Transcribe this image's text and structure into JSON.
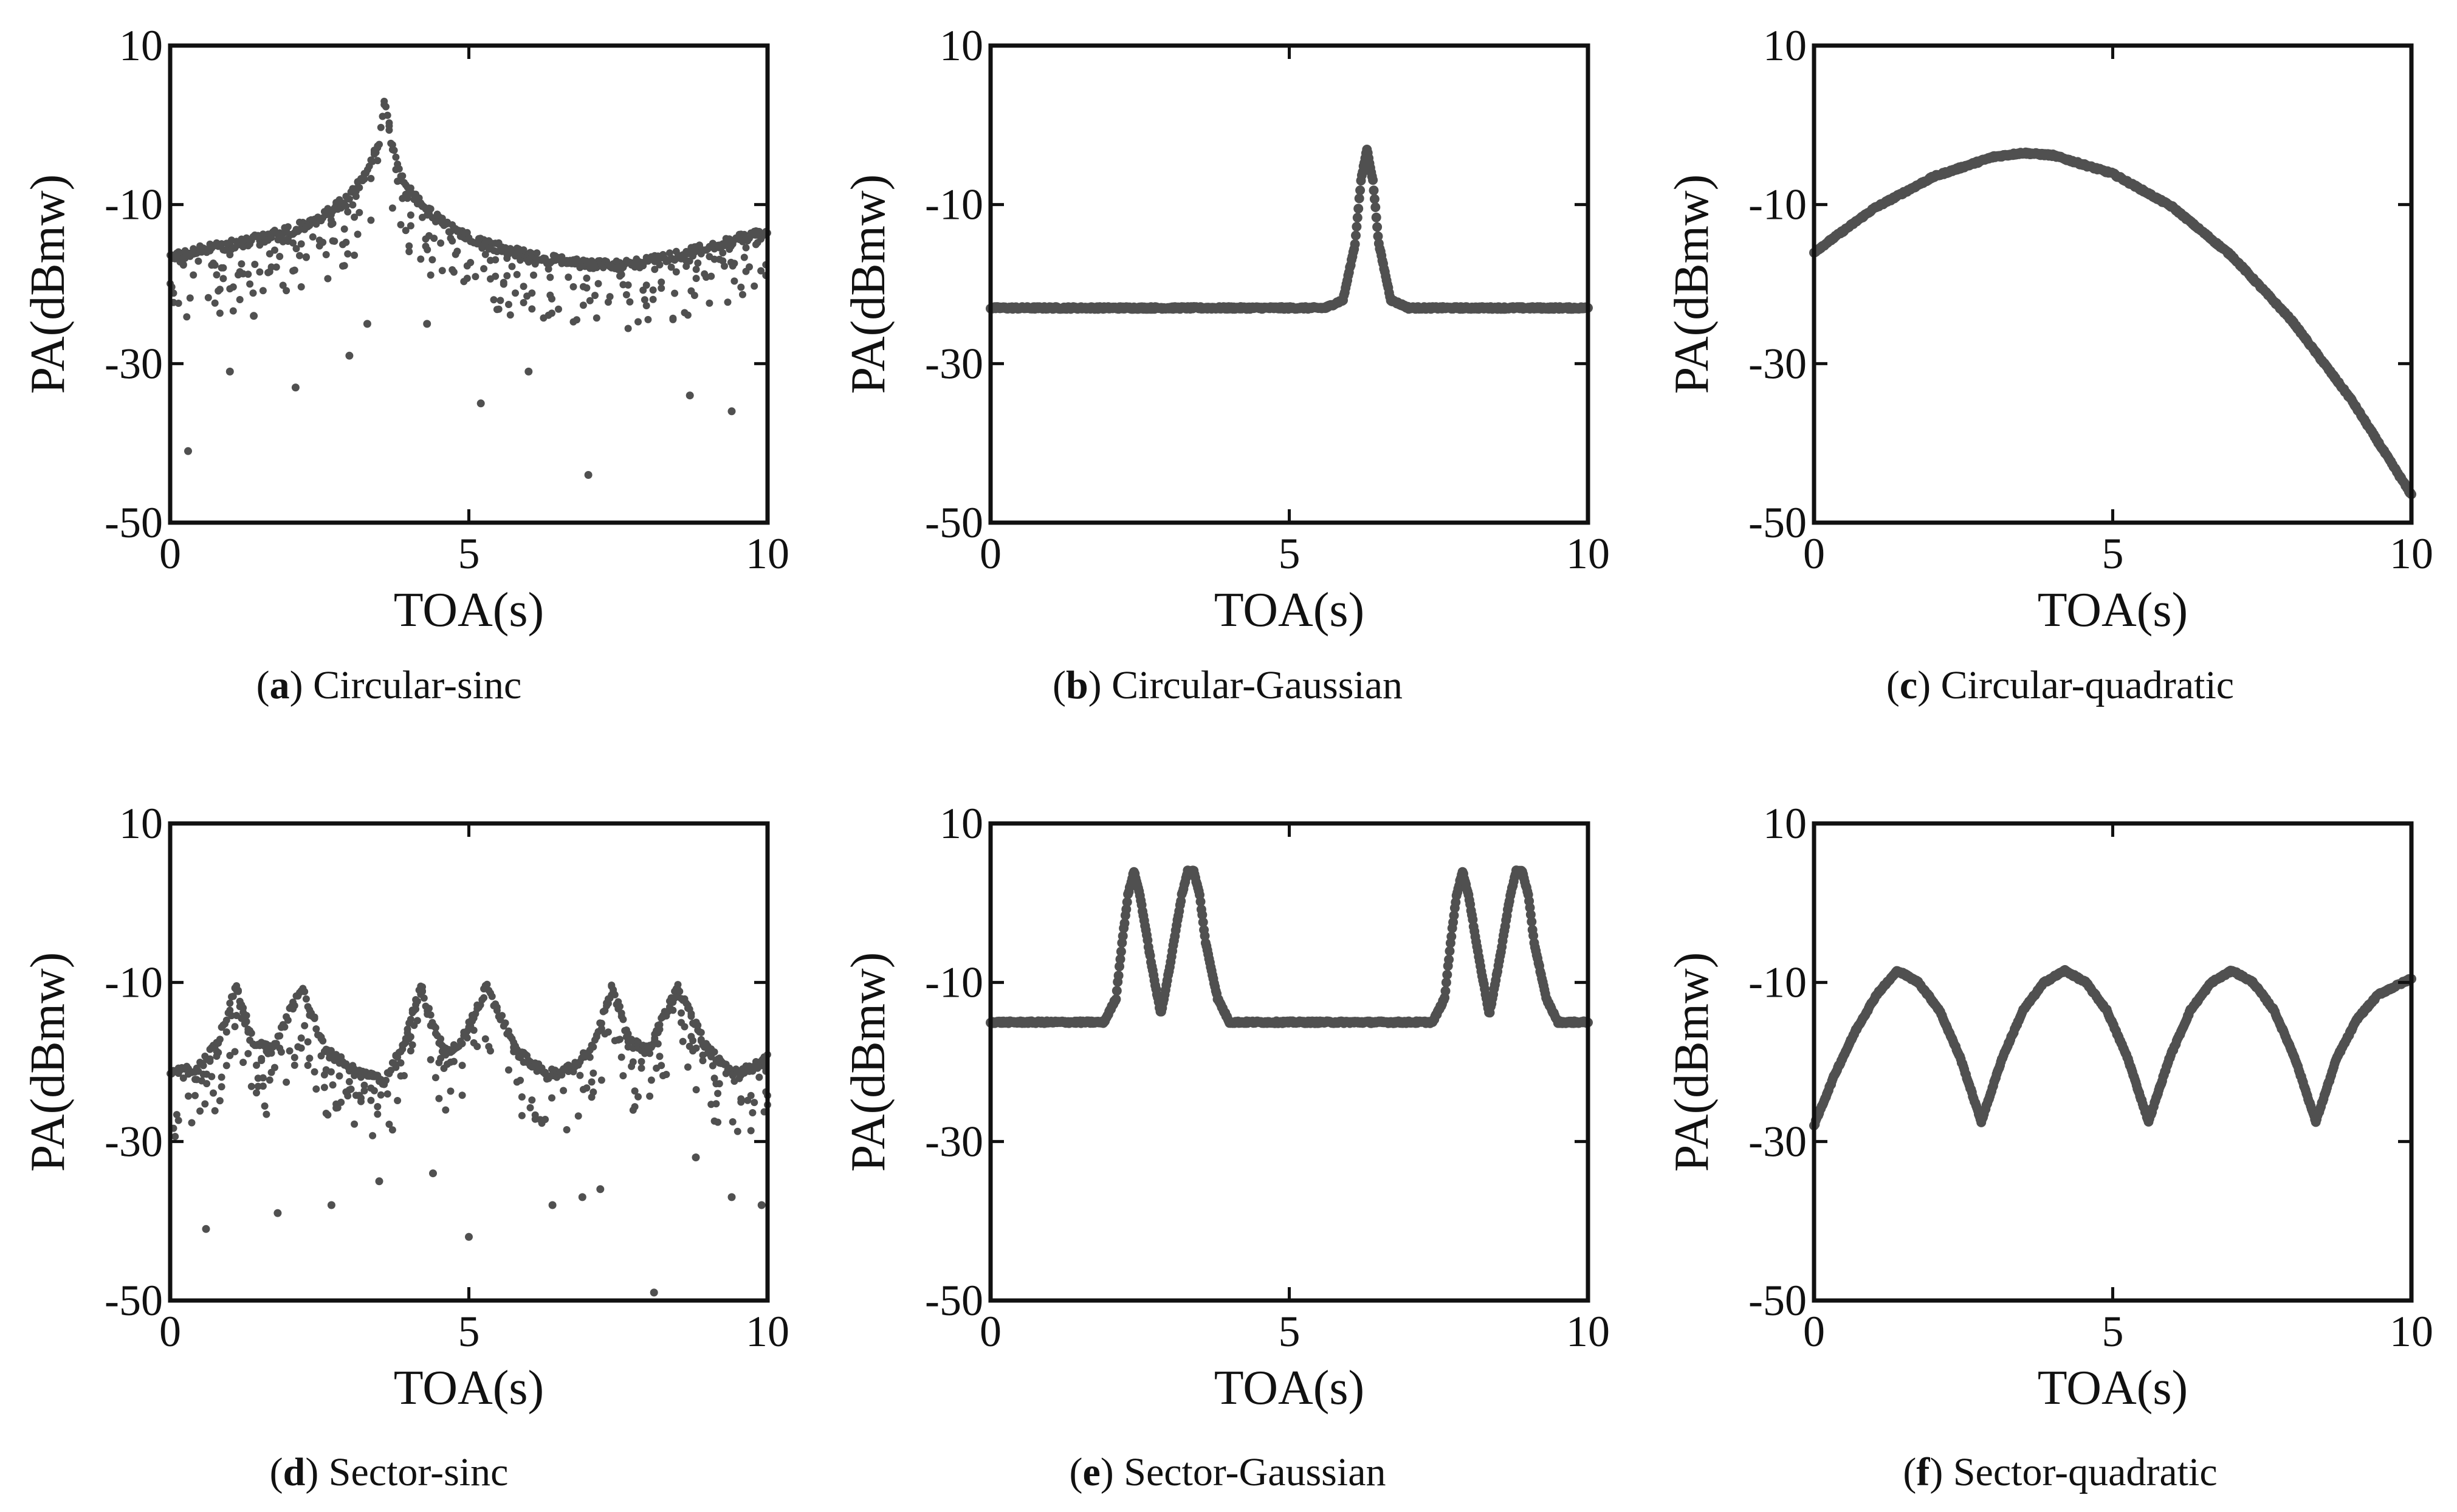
{
  "figure": {
    "colors": {
      "marker": "#505050",
      "axis": "#111111",
      "background": "#ffffff"
    },
    "panels": [
      {
        "letter": "a",
        "title": "Circular-sinc"
      },
      {
        "letter": "b",
        "title": "Circular-Gaussian"
      },
      {
        "letter": "c",
        "title": "Circular-quadratic"
      },
      {
        "letter": "d",
        "title": "Sector-sinc"
      },
      {
        "letter": "e",
        "title": "Sector-Gaussian"
      },
      {
        "letter": "f",
        "title": "Sector-quadratic"
      }
    ]
  },
  "chart_data": [
    {
      "id": "a",
      "type": "scatter",
      "title": "Circular-sinc",
      "xlabel": "TOA(s)",
      "ylabel": "PA(dBmw)",
      "xlim": [
        0,
        10
      ],
      "ylim": [
        -50,
        10
      ],
      "xticks": [
        "0",
        "5",
        "10"
      ],
      "yticks": [
        "-50",
        "-30",
        "-10",
        "10"
      ],
      "grid": false,
      "legend": "none",
      "series": [
        {
          "x": [
            0,
            0.5,
            1.0,
            1.5,
            2.0,
            2.5,
            3.0,
            3.3,
            3.5,
            3.6,
            3.7,
            3.9,
            4.2,
            4.6,
            5.0,
            5.5,
            6.0,
            6.5,
            7.0,
            7.5,
            8.0,
            8.5,
            9.0,
            9.5,
            10.0
          ],
          "y": [
            -16,
            -15.2,
            -14.5,
            -13.7,
            -12.7,
            -11.2,
            -8.5,
            -5.5,
            -1.5,
            4.0,
            -1.5,
            -6.5,
            -9.5,
            -12.0,
            -13.5,
            -14.8,
            -15.8,
            -16.5,
            -17.0,
            -17.1,
            -16.6,
            -15.8,
            -14.8,
            -13.8,
            -13.0
          ]
        }
      ],
      "outliers": {
        "x": [
          0.3,
          1.0,
          2.1,
          3.3,
          5.2,
          7.0,
          9.4,
          1.4,
          3.0,
          4.3,
          6.0,
          8.7
        ],
        "y": [
          -41,
          -31,
          -33,
          -25,
          -35,
          -44,
          -36,
          -24,
          -29,
          -25,
          -31,
          -34
        ]
      }
    },
    {
      "id": "b",
      "type": "line",
      "title": "Circular-Gaussian",
      "xlabel": "TOA(s)",
      "ylabel": "PA(dBmw)",
      "xlim": [
        0,
        10
      ],
      "ylim": [
        -50,
        10
      ],
      "xticks": [
        "0",
        "5",
        "10"
      ],
      "yticks": [
        "-50",
        "-30",
        "-10",
        "10"
      ],
      "grid": false,
      "legend": "none",
      "series": [
        {
          "x": [
            0,
            1,
            2,
            3,
            4,
            5,
            5.6,
            5.9,
            6.1,
            6.2,
            6.3,
            6.4,
            6.5,
            6.7,
            7.0,
            8,
            9,
            10
          ],
          "y": [
            -23,
            -23,
            -23,
            -23,
            -23,
            -23,
            -23,
            -22,
            -15,
            -7,
            -3,
            -7,
            -15,
            -22,
            -23,
            -23,
            -23,
            -23
          ]
        }
      ]
    },
    {
      "id": "c",
      "type": "line",
      "title": "Circular-quadratic",
      "xlabel": "TOA(s)",
      "ylabel": "PA(dBmw)",
      "xlim": [
        0,
        10
      ],
      "ylim": [
        -50,
        10
      ],
      "xticks": [
        "0",
        "5",
        "10"
      ],
      "yticks": [
        "-50",
        "-30",
        "-10",
        "10"
      ],
      "grid": false,
      "legend": "none",
      "series": [
        {
          "x": [
            0,
            1,
            2,
            3,
            3.5,
            4,
            5,
            6,
            7,
            8,
            9,
            10
          ],
          "y": [
            -16,
            -10.5,
            -6.5,
            -4.0,
            -3.5,
            -3.8,
            -6.1,
            -10.3,
            -16.5,
            -24.6,
            -34.6,
            -46.5
          ]
        }
      ]
    },
    {
      "id": "d",
      "type": "scatter",
      "title": "Sector-sinc",
      "xlabel": "TOA(s)",
      "ylabel": "PA(dBmw)",
      "xlim": [
        0,
        10
      ],
      "ylim": [
        -50,
        10
      ],
      "xticks": [
        "0",
        "5",
        "10"
      ],
      "yticks": [
        "-50",
        "-30",
        "-10",
        "10"
      ],
      "grid": false,
      "legend": "none",
      "series": [
        {
          "x": [
            0,
            0.5,
            0.8,
            1.1,
            1.4,
            1.7,
            2.2,
            2.6,
            3.2,
            3.6,
            3.9,
            4.2,
            4.5,
            4.8,
            5.3,
            5.8,
            6.3,
            6.8,
            7.1,
            7.4,
            7.7,
            8.0,
            8.5,
            9.0,
            9.5,
            10.0
          ],
          "y": [
            -21,
            -20,
            -17,
            -10,
            -17,
            -18,
            -10,
            -18,
            -21,
            -22,
            -17,
            -10,
            -17,
            -18,
            -10,
            -18,
            -21,
            -20,
            -17,
            -10,
            -17,
            -18,
            -10,
            -18,
            -21,
            -19
          ]
        }
      ],
      "outliers": {
        "x": [
          0.6,
          1.8,
          2.7,
          3.5,
          5.0,
          6.4,
          7.2,
          8.1,
          9.4,
          9.9,
          4.4,
          6.9,
          8.8
        ],
        "y": [
          -41,
          -39,
          -38,
          -35,
          -42,
          -38,
          -36,
          -49,
          -37,
          -38,
          -34,
          -37,
          -32
        ]
      }
    },
    {
      "id": "e",
      "type": "line",
      "title": "Sector-Gaussian",
      "xlabel": "TOA(s)",
      "ylabel": "PA(dBmw)",
      "xlim": [
        0,
        10
      ],
      "ylim": [
        -50,
        10
      ],
      "xticks": [
        "0",
        "5",
        "10"
      ],
      "yticks": [
        "-50",
        "-30",
        "-10",
        "10"
      ],
      "grid": false,
      "legend": "none",
      "series": [
        {
          "x": [
            0,
            1,
            1.9,
            2.1,
            2.2,
            2.3,
            2.4,
            2.5,
            2.7,
            2.85,
            3.0,
            3.2,
            3.3,
            3.4,
            3.5,
            3.6,
            3.8,
            4.0,
            5,
            6,
            7,
            7.4,
            7.6,
            7.7,
            7.8,
            7.9,
            8.0,
            8.2,
            8.35,
            8.5,
            8.7,
            8.8,
            8.9,
            9.0,
            9.1,
            9.3,
            9.5,
            10
          ],
          "y": [
            -15,
            -15,
            -15,
            -12,
            -5,
            1,
            4,
            1,
            -8,
            -14,
            -8,
            1,
            4,
            4,
            1,
            -5,
            -12,
            -15,
            -15,
            -15,
            -15,
            -15,
            -12,
            -5,
            1,
            4,
            1,
            -8,
            -14,
            -8,
            1,
            4,
            4,
            1,
            -5,
            -12,
            -15,
            -15
          ]
        }
      ]
    },
    {
      "id": "f",
      "type": "line",
      "title": "Sector-quadratic",
      "xlabel": "TOA(s)",
      "ylabel": "PA(dBmw)",
      "xlim": [
        0,
        10
      ],
      "ylim": [
        -50,
        10
      ],
      "xticks": [
        "0",
        "5",
        "10"
      ],
      "yticks": [
        "-50",
        "-30",
        "-10",
        "10"
      ],
      "grid": false,
      "legend": "none",
      "series": [
        {
          "x": [
            0,
            0.35,
            0.7,
            1.05,
            1.4,
            1.75,
            2.1,
            2.45,
            2.8,
            3.15,
            3.5,
            3.85,
            4.2,
            4.55,
            4.9,
            5.25,
            5.6,
            5.95,
            6.3,
            6.65,
            7.0,
            7.35,
            7.7,
            8.05,
            8.4,
            8.75,
            9.1,
            9.45,
            10.0
          ],
          "y": [
            -28,
            -21.5,
            -16,
            -11.5,
            -8.5,
            -10,
            -13.5,
            -19.5,
            -27.5,
            -19.5,
            -13.5,
            -10,
            -8.5,
            -10,
            -13.5,
            -19.5,
            -27.5,
            -19.5,
            -13.5,
            -10,
            -8.5,
            -10,
            -13.5,
            -19.5,
            -27.5,
            -19.5,
            -14.5,
            -11.5,
            -9.5
          ]
        }
      ]
    }
  ]
}
